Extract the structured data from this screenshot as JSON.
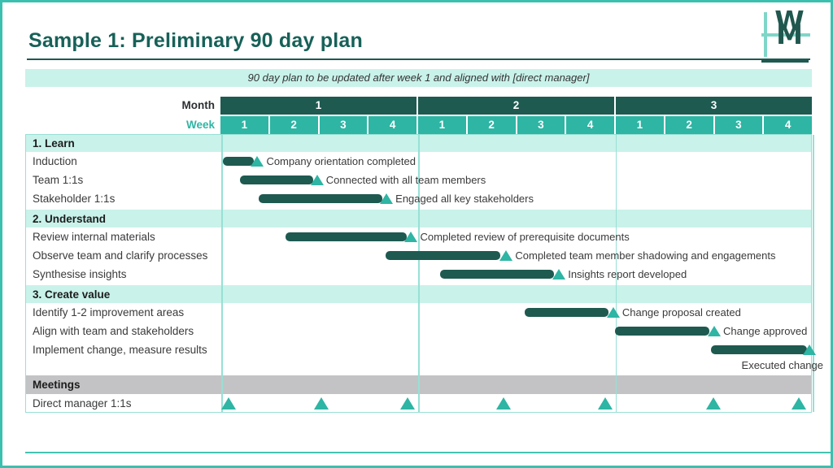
{
  "slide": {
    "title": "Sample 1: Preliminary 90 day plan",
    "subtitle_banner": "90 day plan to be updated after week 1 and aligned with [direct manager]",
    "logo_letters": [
      "W",
      "M"
    ]
  },
  "colors": {
    "accent_teal": "#2eb5a4",
    "dark_teal": "#1e5a50",
    "title_teal": "#176158",
    "mint": "#c9f2ea",
    "grid_teal": "#97e0d5",
    "frame_teal": "#3bc0af",
    "meetings_gray": "#c3c3c5",
    "text_dark": "#3a3a3a"
  },
  "chart_data": {
    "type": "gantt",
    "title": "Sample 1: Preliminary 90 day plan",
    "axis": {
      "month_label": "Month",
      "week_label": "Week",
      "months": [
        {
          "label": "1",
          "weeks": [
            "1",
            "2",
            "3",
            "4"
          ]
        },
        {
          "label": "2",
          "weeks": [
            "1",
            "2",
            "3",
            "4"
          ]
        },
        {
          "label": "3",
          "weeks": [
            "1",
            "2",
            "3",
            "4"
          ]
        }
      ],
      "weeks_total": 12
    },
    "sections": [
      {
        "label": "1. Learn",
        "tasks": [
          {
            "label": "Induction",
            "start_week": 0.05,
            "end_week": 0.68,
            "milestone": {
              "week": 0.75,
              "label": "Company orientation completed",
              "label_position": "right"
            }
          },
          {
            "label": "Team 1:1s",
            "start_week": 0.4,
            "end_week": 1.88,
            "milestone": {
              "week": 1.96,
              "label": "Connected with all team members",
              "label_position": "right"
            }
          },
          {
            "label": "Stakeholder 1:1s",
            "start_week": 0.78,
            "end_week": 3.28,
            "milestone": {
              "week": 3.37,
              "label": "Engaged all key stakeholders",
              "label_position": "right"
            }
          }
        ]
      },
      {
        "label": "2. Understand",
        "tasks": [
          {
            "label": "Review internal materials",
            "start_week": 1.32,
            "end_week": 3.78,
            "milestone": {
              "week": 3.87,
              "label": "Completed review of prerequisite documents",
              "label_position": "right"
            }
          },
          {
            "label": "Observe team and clarify processes",
            "start_week": 3.35,
            "end_week": 5.68,
            "milestone": {
              "week": 5.8,
              "label": "Completed team member shadowing and engagements",
              "label_position": "right"
            }
          },
          {
            "label": "Synthesise insights",
            "start_week": 4.45,
            "end_week": 6.76,
            "milestone": {
              "week": 6.87,
              "label": "Insights report developed",
              "label_position": "right"
            }
          }
        ]
      },
      {
        "label": "3. Create value",
        "tasks": [
          {
            "label": "Identify 1-2 improvement areas",
            "start_week": 6.17,
            "end_week": 7.88,
            "milestone": {
              "week": 7.97,
              "label": "Change proposal created",
              "label_position": "right"
            }
          },
          {
            "label": "Align with team and stakeholders",
            "start_week": 8.0,
            "end_week": 9.92,
            "milestone": {
              "week": 10.02,
              "label": "Change approved",
              "label_position": "right"
            }
          },
          {
            "label": "Implement change, measure results",
            "start_week": 9.95,
            "end_week": 11.9,
            "milestone": {
              "week": 11.95,
              "label": "Executed change",
              "label_position": "below"
            }
          }
        ]
      }
    ],
    "meetings": {
      "label": "Meetings",
      "rows": [
        {
          "label": "Direct manager 1:1s",
          "milestone_weeks": [
            0.16,
            2.05,
            3.8,
            5.75,
            7.8,
            10.0,
            11.73
          ]
        }
      ]
    }
  }
}
